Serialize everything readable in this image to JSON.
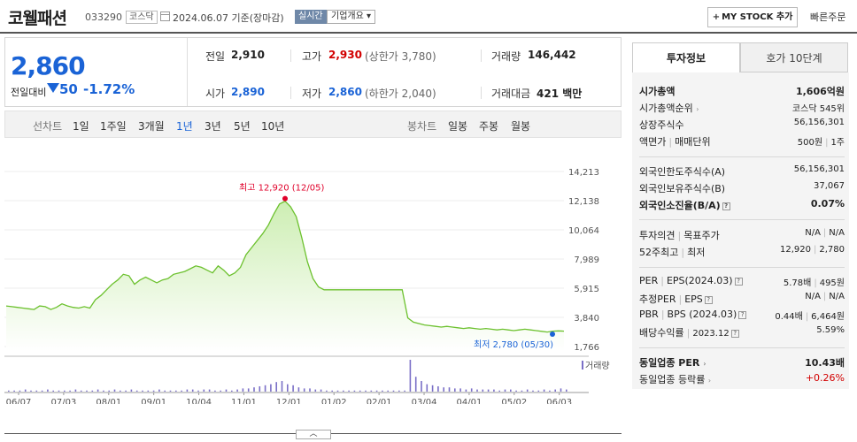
{
  "header": {
    "stock_name": "코웰패션",
    "stock_code": "033290",
    "market": "코스닥",
    "base_date": "2024.06.07 기준(장마감)",
    "realtime": "실시간",
    "company_info": "기업개요 ▾",
    "my_stock": "MY STOCK 추가",
    "quick_order": "빠른주문"
  },
  "summary": {
    "price": "2,860",
    "vs_label": "전일대비",
    "change": "50",
    "change_rate": "-1.72%",
    "prev_close_label": "전일",
    "prev_close": "2,910",
    "high_label": "고가",
    "high": "2,930",
    "upper_limit": "(상한가 3,780)",
    "volume_label": "거래량",
    "volume": "146,442",
    "open_label": "시가",
    "open": "2,890",
    "low_label": "저가",
    "low": "2,860",
    "lower_limit": "(하한가 2,040)",
    "amount_label": "거래대금",
    "amount": "421 백만"
  },
  "period_bar": {
    "line_label": "선차트",
    "line_items": [
      "1일",
      "1주일",
      "3개월",
      "1년",
      "3년",
      "5년",
      "10년"
    ],
    "selected": "1년",
    "candle_label": "봉차트",
    "candle_items": [
      "일봉",
      "주봉",
      "월봉"
    ]
  },
  "chart_data": {
    "type": "area",
    "y_ticks": [
      "14,213",
      "12,138",
      "10,064",
      "7,989",
      "5,915",
      "3,840",
      "1,766"
    ],
    "ylim": [
      1766,
      14213
    ],
    "x_ticks": [
      "06/07",
      "07/03",
      "08/01",
      "09/01",
      "10/04",
      "11/01",
      "12/01",
      "01/02",
      "02/01",
      "03/04",
      "04/01",
      "05/02",
      "06/03"
    ],
    "high_label": "최고 12,920 (12/05)",
    "low_label": "최저 2,780 (05/30)",
    "volume_label": "거래량",
    "colors": {
      "line": "#6cc12e",
      "fill_top": "#cdeeb3",
      "fill_bottom": "#ffffff",
      "high": "#e0002a",
      "low": "#1a63d6"
    },
    "series": [
      {
        "values": [
          4650,
          4600,
          4550,
          4500,
          4450,
          4400,
          4650,
          4600,
          4400,
          4550,
          4800,
          4650,
          4550,
          4500,
          4600,
          4500,
          5100,
          5400,
          5800,
          6200,
          6500,
          6900,
          6800,
          6200,
          6500,
          6700,
          6500,
          6300,
          6500,
          6600,
          6900,
          7000,
          7100,
          7300,
          7500,
          7400,
          7200,
          7000,
          7500,
          7200,
          6800,
          7000,
          7400,
          8300,
          8800,
          9300,
          9800,
          10400,
          11200,
          11900,
          12100,
          11700,
          11000,
          9500,
          7800,
          6600,
          6000,
          5800,
          5800,
          5800,
          5800,
          5800,
          5800,
          5800,
          5800,
          5800,
          5800,
          5800,
          5800,
          5800,
          5800,
          5800,
          3800,
          3500,
          3400,
          3300,
          3250,
          3200,
          3150,
          3200,
          3150,
          3100,
          3050,
          3100,
          3050,
          3000,
          3050,
          3000,
          2950,
          3000,
          2950,
          2900,
          2950,
          3000,
          2950,
          2900,
          2850,
          2800,
          2860,
          2880,
          2860
        ]
      }
    ],
    "volume": [
      1,
      1,
      1,
      2,
      1,
      1,
      1,
      2,
      1,
      1,
      1,
      1,
      2,
      1,
      1,
      1,
      2,
      1,
      1,
      2,
      1,
      1,
      2,
      1,
      1,
      1,
      1,
      2,
      1,
      1,
      1,
      1,
      2,
      2,
      1,
      2,
      2,
      1,
      1,
      2,
      1,
      2,
      3,
      3,
      4,
      5,
      6,
      7,
      9,
      10,
      7,
      6,
      4,
      3,
      3,
      2,
      2,
      1,
      1,
      1,
      1,
      1,
      1,
      1,
      1,
      1,
      1,
      1,
      1,
      1,
      1,
      1,
      30,
      14,
      10,
      7,
      6,
      5,
      4,
      4,
      3,
      3,
      2,
      3,
      2,
      2,
      2,
      2,
      1,
      2,
      2,
      1,
      1,
      2,
      1,
      1,
      2,
      1,
      2,
      3,
      2
    ]
  },
  "right_panel": {
    "tabs": [
      "투자정보",
      "호가 10단계"
    ],
    "rows": [
      {
        "label": "시가총액",
        "value": "1,606억원"
      },
      {
        "label": "시가총액순위",
        "value": "코스닥 545위"
      },
      {
        "label": "상장주식수",
        "value": "56,156,301"
      },
      {
        "label": "액면가",
        "label2": "매매단위",
        "value": "500원",
        "value2": "1주"
      },
      {
        "label": "외국인한도주식수(A)",
        "value": "56,156,301"
      },
      {
        "label": "외국인보유주식수(B)",
        "value": "37,067"
      },
      {
        "label": "외국인소진율(B/A)",
        "value": "0.07%"
      },
      {
        "label": "투자의견",
        "label2": "목표주가",
        "value": "N/A",
        "value2": "N/A"
      },
      {
        "label": "52주최고",
        "label2": "최저",
        "value": "12,920",
        "value2": "2,780"
      },
      {
        "label": "PER",
        "label2": "EPS(2024.03)",
        "value": "5.78배",
        "value2": "495원"
      },
      {
        "label": "추정PER",
        "label2": "EPS",
        "value": "N/A",
        "value2": "N/A"
      },
      {
        "label": "PBR",
        "label2": "BPS (2024.03)",
        "value": "0.44배",
        "value2": "6,464원"
      },
      {
        "label": "배당수익률",
        "label2": "2023.12",
        "value": "5.59%"
      },
      {
        "label": "동일업종 PER",
        "value": "10.43배"
      },
      {
        "label": "동일업종 등락률",
        "value": "+0.26%"
      }
    ]
  }
}
